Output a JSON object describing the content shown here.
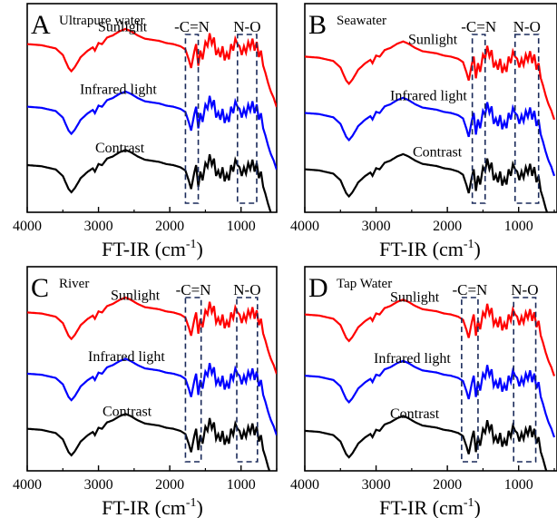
{
  "chart_data": [
    {
      "type": "line",
      "panel_letter": "A",
      "title": "Ultrapure water",
      "xlabel": "FT-IR (cm",
      "xlabel_sup": "-1",
      "xlabel_close": ")",
      "xlim": [
        4000,
        500
      ],
      "x_tick_labels": [
        "4000",
        "3000",
        "2000",
        "1000"
      ],
      "x_ticks": [
        4000,
        3000,
        2000,
        1000
      ],
      "annotations": [
        {
          "text": "-C=N",
          "x_from": 1780,
          "x_to": 1600
        },
        {
          "text": "N-O",
          "x_from": 1050,
          "x_to": 780
        }
      ],
      "series": [
        {
          "name": "Sunlight",
          "color": "#ff0000",
          "offset": 0.78
        },
        {
          "name": "Infrared light",
          "color": "#0000ff",
          "offset": 0.48
        },
        {
          "name": "Contrast",
          "color": "#000000",
          "offset": 0.2
        }
      ]
    },
    {
      "type": "line",
      "panel_letter": "B",
      "title": "Seawater",
      "xlabel": "FT-IR (cm",
      "xlabel_sup": "-1",
      "xlabel_close": ")",
      "xlim": [
        4000,
        500
      ],
      "x_tick_labels": [
        "4000",
        "3000",
        "2000",
        "1000"
      ],
      "x_ticks": [
        4000,
        3000,
        2000,
        1000
      ],
      "annotations": [
        {
          "text": "-C=N",
          "x_from": 1650,
          "x_to": 1470
        },
        {
          "text": "N-O",
          "x_from": 1050,
          "x_to": 720
        }
      ],
      "series": [
        {
          "name": "Sunlight",
          "color": "#ff0000",
          "offset": 0.72
        },
        {
          "name": "Infrared light",
          "color": "#0000ff",
          "offset": 0.45
        },
        {
          "name": "Contrast",
          "color": "#000000",
          "offset": 0.18
        }
      ]
    },
    {
      "type": "line",
      "panel_letter": "C",
      "title": "River",
      "xlabel": "FT-IR (cm",
      "xlabel_sup": "-1",
      "xlabel_close": ")",
      "xlim": [
        4000,
        500
      ],
      "x_tick_labels": [
        "4000",
        "3000",
        "2000",
        "1000"
      ],
      "x_ticks": [
        4000,
        3000,
        2000,
        1000
      ],
      "annotations": [
        {
          "text": "-C=N",
          "x_from": 1780,
          "x_to": 1560
        },
        {
          "text": "N-O",
          "x_from": 1060,
          "x_to": 770
        }
      ],
      "series": [
        {
          "name": "Sunlight",
          "color": "#ff0000",
          "offset": 0.75
        },
        {
          "name": "Infrared light",
          "color": "#0000ff",
          "offset": 0.45
        },
        {
          "name": "Contrast",
          "color": "#000000",
          "offset": 0.18
        }
      ]
    },
    {
      "type": "line",
      "panel_letter": "D",
      "title": "Tap Water",
      "xlabel": "FT-IR (cm",
      "xlabel_sup": "-1",
      "xlabel_close": ")",
      "xlim": [
        4000,
        500
      ],
      "x_tick_labels": [
        "4000",
        "3000",
        "2000",
        "1000"
      ],
      "x_ticks": [
        4000,
        3000,
        2000,
        1000
      ],
      "annotations": [
        {
          "text": "-C=N",
          "x_from": 1800,
          "x_to": 1570
        },
        {
          "text": "N-O",
          "x_from": 1070,
          "x_to": 760
        }
      ],
      "series": [
        {
          "name": "Sunlight",
          "color": "#ff0000",
          "offset": 0.74
        },
        {
          "name": "Infrared light",
          "color": "#0000ff",
          "offset": 0.44
        },
        {
          "name": "Contrast",
          "color": "#000000",
          "offset": 0.17
        }
      ]
    }
  ]
}
